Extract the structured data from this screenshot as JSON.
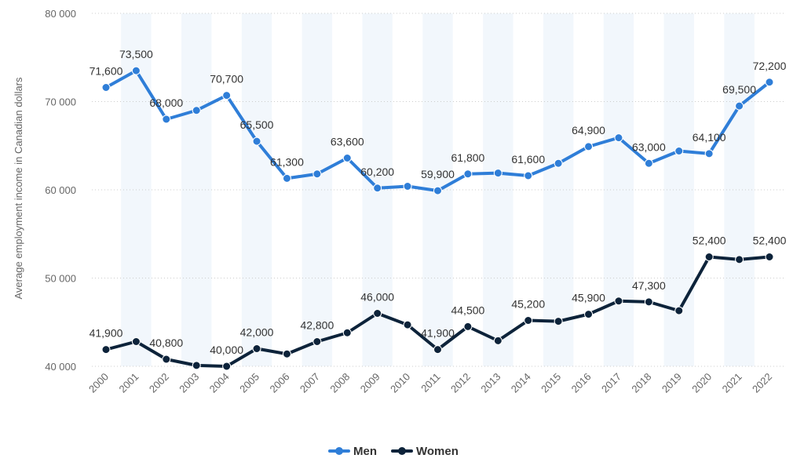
{
  "chart_data": {
    "type": "line",
    "title": "",
    "xlabel": "",
    "ylabel": "Average employment income in Canadian dollars",
    "ylim": [
      40000,
      80000
    ],
    "yticks": [
      40000,
      50000,
      60000,
      70000,
      80000
    ],
    "ytick_labels": [
      "40 000",
      "50 000",
      "60 000",
      "70 000",
      "80 000"
    ],
    "categories": [
      "2000",
      "2001",
      "2002",
      "2003",
      "2004",
      "2005",
      "2006",
      "2007",
      "2008",
      "2009",
      "2010",
      "2011",
      "2012",
      "2013",
      "2014",
      "2015",
      "2016",
      "2017",
      "2018",
      "2019",
      "2020",
      "2021",
      "2022"
    ],
    "grid": true,
    "legend_position": "bottom-center",
    "series": [
      {
        "name": "Men",
        "color": "#2f7ed8",
        "values": [
          71600,
          73500,
          68000,
          69000,
          70700,
          65500,
          61300,
          61800,
          63600,
          60200,
          60400,
          59900,
          61800,
          61900,
          61600,
          63000,
          64900,
          65900,
          63000,
          64400,
          64100,
          69500,
          72200
        ],
        "labels": [
          "71,600",
          "73,500",
          "68,000",
          null,
          "70,700",
          "65,500",
          "61,300",
          null,
          "63,600",
          "60,200",
          null,
          "59,900",
          "61,800",
          null,
          "61,600",
          null,
          "64,900",
          null,
          "63,000",
          null,
          "64,100",
          "69,500",
          "72,200"
        ]
      },
      {
        "name": "Women",
        "color": "#0d233a",
        "values": [
          41900,
          42800,
          40800,
          40100,
          40000,
          42000,
          41400,
          42800,
          43800,
          46000,
          44700,
          41900,
          44500,
          42900,
          45200,
          45100,
          45900,
          47400,
          47300,
          46300,
          52400,
          52100,
          52400
        ],
        "labels": [
          "41,900",
          null,
          "40,800",
          null,
          "40,000",
          "42,000",
          null,
          "42,800",
          null,
          "46,000",
          null,
          "41,900",
          "44,500",
          null,
          "45,200",
          null,
          "45,900",
          null,
          "47,300",
          null,
          "52,400",
          null,
          "52,400"
        ]
      }
    ]
  }
}
